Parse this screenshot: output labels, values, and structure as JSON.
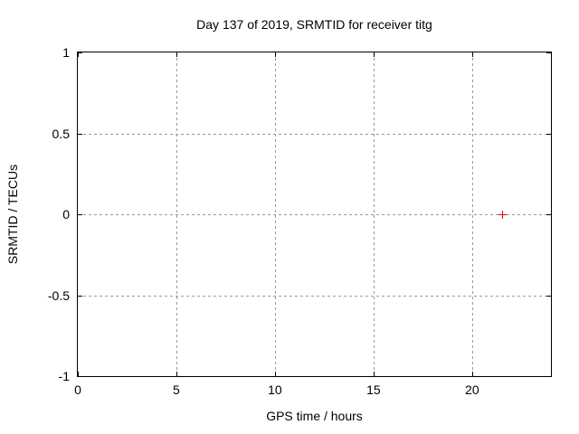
{
  "chart_data": {
    "type": "scatter",
    "title": "Day 137 of 2019, SRMTID for receiver titg",
    "xlabel": "GPS time / hours",
    "ylabel": "SRMTID / TECUs",
    "xlim": [
      0,
      24
    ],
    "ylim": [
      -1,
      1
    ],
    "x_ticks": [
      {
        "value": 0,
        "label": "0"
      },
      {
        "value": 5,
        "label": "5"
      },
      {
        "value": 10,
        "label": "10"
      },
      {
        "value": 15,
        "label": "15"
      },
      {
        "value": 20,
        "label": "20"
      }
    ],
    "y_ticks": [
      {
        "value": 1,
        "label": "1"
      },
      {
        "value": 0.5,
        "label": "0.5"
      },
      {
        "value": 0,
        "label": "0"
      },
      {
        "value": -0.5,
        "label": "-0.5"
      },
      {
        "value": -1,
        "label": "-1"
      }
    ],
    "grid": true,
    "legend": "none",
    "colors": {
      "grid": "#9a9a9a",
      "border": "#000000",
      "background": "#ffffff",
      "text": "#000000"
    },
    "series": [
      {
        "name": "SRMTID",
        "marker": "plus",
        "color": "#e60000",
        "points": [
          {
            "x": 21.5,
            "y": 0
          }
        ]
      }
    ]
  }
}
